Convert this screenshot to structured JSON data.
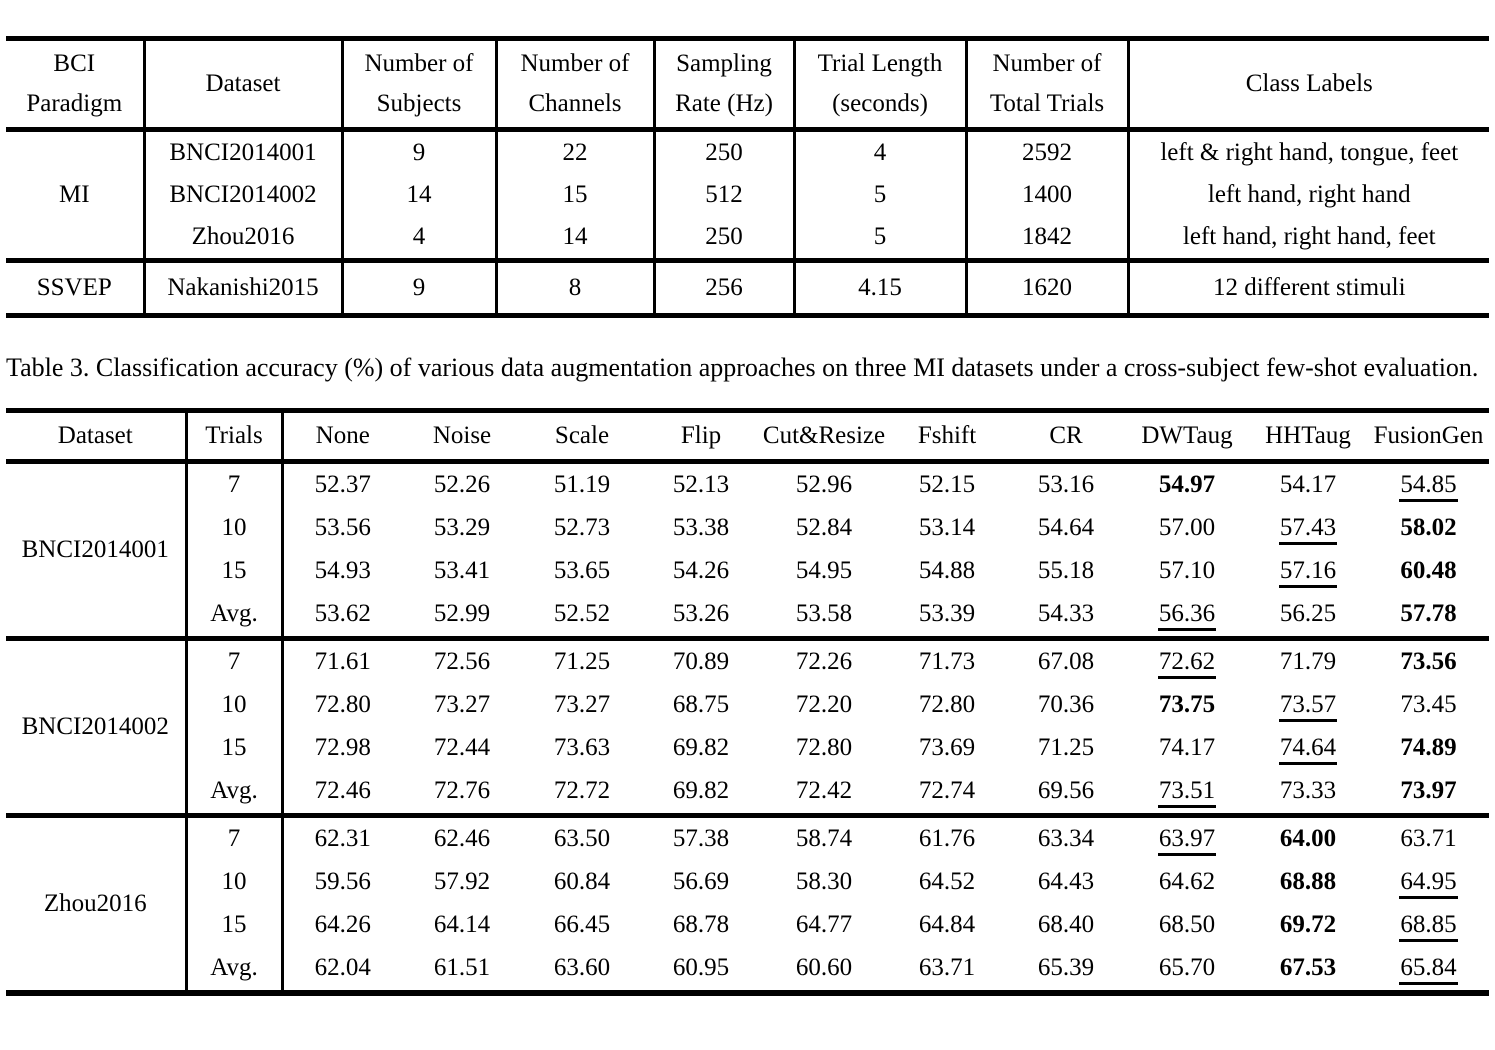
{
  "colors": {
    "text": "#000000",
    "background": "#ffffff",
    "rule": "#000000"
  },
  "datasets_table": {
    "headers": [
      [
        "BCI",
        "Paradigm"
      ],
      [
        "Dataset"
      ],
      [
        "Number of",
        "Subjects"
      ],
      [
        "Number of",
        "Channels"
      ],
      [
        "Sampling",
        "Rate (Hz)"
      ],
      [
        "Trial Length",
        "(seconds)"
      ],
      [
        "Number of",
        "Total Trials"
      ],
      [
        "Class Labels"
      ]
    ],
    "groups": [
      {
        "paradigm": "MI",
        "rows": [
          {
            "dataset": "BNCI2014001",
            "subjects": "9",
            "channels": "22",
            "rate": "250",
            "trial_length": "4",
            "total_trials": "2592",
            "class_labels": "left & right hand, tongue, feet"
          },
          {
            "dataset": "BNCI2014002",
            "subjects": "14",
            "channels": "15",
            "rate": "512",
            "trial_length": "5",
            "total_trials": "1400",
            "class_labels": "left hand, right hand"
          },
          {
            "dataset": "Zhou2016",
            "subjects": "4",
            "channels": "14",
            "rate": "250",
            "trial_length": "5",
            "total_trials": "1842",
            "class_labels": "left hand, right hand, feet"
          }
        ]
      },
      {
        "paradigm": "SSVEP",
        "rows": [
          {
            "dataset": "Nakanishi2015",
            "subjects": "9",
            "channels": "8",
            "rate": "256",
            "trial_length": "4.15",
            "total_trials": "1620",
            "class_labels": "12 different stimuli"
          }
        ]
      }
    ]
  },
  "caption": "Table 3. Classification accuracy (%) of various data augmentation approaches on three MI datasets under a cross-subject few-shot evaluation.",
  "accuracy_table": {
    "headers": [
      "Dataset",
      "Trials",
      "None",
      "Noise",
      "Scale",
      "Flip",
      "Cut&Resize",
      "Fshift",
      "CR",
      "DWTaug",
      "HHTaug",
      "FusionGen"
    ],
    "groups": [
      {
        "dataset": "BNCI2014001",
        "rows": [
          {
            "trials": "7",
            "values": [
              {
                "t": "52.37",
                "s": ""
              },
              {
                "t": "52.26",
                "s": ""
              },
              {
                "t": "51.19",
                "s": ""
              },
              {
                "t": "52.13",
                "s": ""
              },
              {
                "t": "52.96",
                "s": ""
              },
              {
                "t": "52.15",
                "s": ""
              },
              {
                "t": "53.16",
                "s": ""
              },
              {
                "t": "54.97",
                "s": "b"
              },
              {
                "t": "54.17",
                "s": ""
              },
              {
                "t": "54.85",
                "s": "u"
              }
            ]
          },
          {
            "trials": "10",
            "values": [
              {
                "t": "53.56",
                "s": ""
              },
              {
                "t": "53.29",
                "s": ""
              },
              {
                "t": "52.73",
                "s": ""
              },
              {
                "t": "53.38",
                "s": ""
              },
              {
                "t": "52.84",
                "s": ""
              },
              {
                "t": "53.14",
                "s": ""
              },
              {
                "t": "54.64",
                "s": ""
              },
              {
                "t": "57.00",
                "s": ""
              },
              {
                "t": "57.43",
                "s": "u"
              },
              {
                "t": "58.02",
                "s": "b"
              }
            ]
          },
          {
            "trials": "15",
            "values": [
              {
                "t": "54.93",
                "s": ""
              },
              {
                "t": "53.41",
                "s": ""
              },
              {
                "t": "53.65",
                "s": ""
              },
              {
                "t": "54.26",
                "s": ""
              },
              {
                "t": "54.95",
                "s": ""
              },
              {
                "t": "54.88",
                "s": ""
              },
              {
                "t": "55.18",
                "s": ""
              },
              {
                "t": "57.10",
                "s": ""
              },
              {
                "t": "57.16",
                "s": "u"
              },
              {
                "t": "60.48",
                "s": "b"
              }
            ]
          },
          {
            "trials": "Avg.",
            "values": [
              {
                "t": "53.62",
                "s": ""
              },
              {
                "t": "52.99",
                "s": ""
              },
              {
                "t": "52.52",
                "s": ""
              },
              {
                "t": "53.26",
                "s": ""
              },
              {
                "t": "53.58",
                "s": ""
              },
              {
                "t": "53.39",
                "s": ""
              },
              {
                "t": "54.33",
                "s": ""
              },
              {
                "t": "56.36",
                "s": "u"
              },
              {
                "t": "56.25",
                "s": ""
              },
              {
                "t": "57.78",
                "s": "b"
              }
            ]
          }
        ]
      },
      {
        "dataset": "BNCI2014002",
        "rows": [
          {
            "trials": "7",
            "values": [
              {
                "t": "71.61",
                "s": ""
              },
              {
                "t": "72.56",
                "s": ""
              },
              {
                "t": "71.25",
                "s": ""
              },
              {
                "t": "70.89",
                "s": ""
              },
              {
                "t": "72.26",
                "s": ""
              },
              {
                "t": "71.73",
                "s": ""
              },
              {
                "t": "67.08",
                "s": ""
              },
              {
                "t": "72.62",
                "s": "u"
              },
              {
                "t": "71.79",
                "s": ""
              },
              {
                "t": "73.56",
                "s": "b"
              }
            ]
          },
          {
            "trials": "10",
            "values": [
              {
                "t": "72.80",
                "s": ""
              },
              {
                "t": "73.27",
                "s": ""
              },
              {
                "t": "73.27",
                "s": ""
              },
              {
                "t": "68.75",
                "s": ""
              },
              {
                "t": "72.20",
                "s": ""
              },
              {
                "t": "72.80",
                "s": ""
              },
              {
                "t": "70.36",
                "s": ""
              },
              {
                "t": "73.75",
                "s": "b"
              },
              {
                "t": "73.57",
                "s": "u"
              },
              {
                "t": "73.45",
                "s": ""
              }
            ]
          },
          {
            "trials": "15",
            "values": [
              {
                "t": "72.98",
                "s": ""
              },
              {
                "t": "72.44",
                "s": ""
              },
              {
                "t": "73.63",
                "s": ""
              },
              {
                "t": "69.82",
                "s": ""
              },
              {
                "t": "72.80",
                "s": ""
              },
              {
                "t": "73.69",
                "s": ""
              },
              {
                "t": "71.25",
                "s": ""
              },
              {
                "t": "74.17",
                "s": ""
              },
              {
                "t": "74.64",
                "s": "u"
              },
              {
                "t": "74.89",
                "s": "b"
              }
            ]
          },
          {
            "trials": "Avg.",
            "values": [
              {
                "t": "72.46",
                "s": ""
              },
              {
                "t": "72.76",
                "s": ""
              },
              {
                "t": "72.72",
                "s": ""
              },
              {
                "t": "69.82",
                "s": ""
              },
              {
                "t": "72.42",
                "s": ""
              },
              {
                "t": "72.74",
                "s": ""
              },
              {
                "t": "69.56",
                "s": ""
              },
              {
                "t": "73.51",
                "s": "u"
              },
              {
                "t": "73.33",
                "s": ""
              },
              {
                "t": "73.97",
                "s": "b"
              }
            ]
          }
        ]
      },
      {
        "dataset": "Zhou2016",
        "rows": [
          {
            "trials": "7",
            "values": [
              {
                "t": "62.31",
                "s": ""
              },
              {
                "t": "62.46",
                "s": ""
              },
              {
                "t": "63.50",
                "s": ""
              },
              {
                "t": "57.38",
                "s": ""
              },
              {
                "t": "58.74",
                "s": ""
              },
              {
                "t": "61.76",
                "s": ""
              },
              {
                "t": "63.34",
                "s": ""
              },
              {
                "t": "63.97",
                "s": "u"
              },
              {
                "t": "64.00",
                "s": "b"
              },
              {
                "t": "63.71",
                "s": ""
              }
            ]
          },
          {
            "trials": "10",
            "values": [
              {
                "t": "59.56",
                "s": ""
              },
              {
                "t": "57.92",
                "s": ""
              },
              {
                "t": "60.84",
                "s": ""
              },
              {
                "t": "56.69",
                "s": ""
              },
              {
                "t": "58.30",
                "s": ""
              },
              {
                "t": "64.52",
                "s": ""
              },
              {
                "t": "64.43",
                "s": ""
              },
              {
                "t": "64.62",
                "s": ""
              },
              {
                "t": "68.88",
                "s": "b"
              },
              {
                "t": "64.95",
                "s": "u"
              }
            ]
          },
          {
            "trials": "15",
            "values": [
              {
                "t": "64.26",
                "s": ""
              },
              {
                "t": "64.14",
                "s": ""
              },
              {
                "t": "66.45",
                "s": ""
              },
              {
                "t": "68.78",
                "s": ""
              },
              {
                "t": "64.77",
                "s": ""
              },
              {
                "t": "64.84",
                "s": ""
              },
              {
                "t": "68.40",
                "s": ""
              },
              {
                "t": "68.50",
                "s": ""
              },
              {
                "t": "69.72",
                "s": "b"
              },
              {
                "t": "68.85",
                "s": "u"
              }
            ]
          },
          {
            "trials": "Avg.",
            "values": [
              {
                "t": "62.04",
                "s": ""
              },
              {
                "t": "61.51",
                "s": ""
              },
              {
                "t": "63.60",
                "s": ""
              },
              {
                "t": "60.95",
                "s": ""
              },
              {
                "t": "60.60",
                "s": ""
              },
              {
                "t": "63.71",
                "s": ""
              },
              {
                "t": "65.39",
                "s": ""
              },
              {
                "t": "65.70",
                "s": ""
              },
              {
                "t": "67.53",
                "s": "b"
              },
              {
                "t": "65.84",
                "s": "u"
              }
            ]
          }
        ]
      }
    ]
  }
}
